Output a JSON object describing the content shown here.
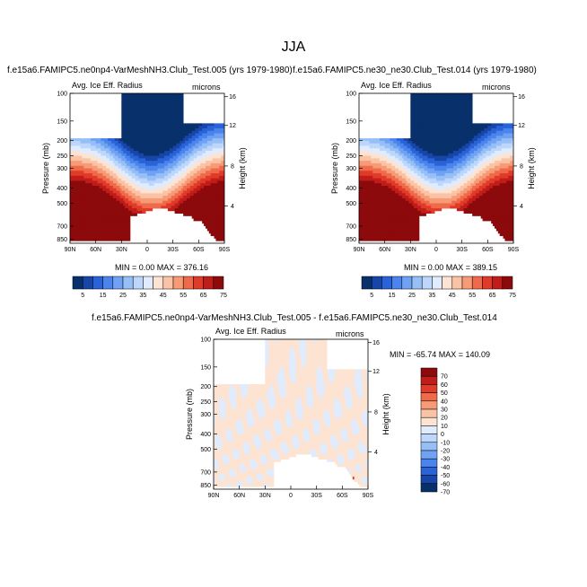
{
  "page": {
    "title": "JJA"
  },
  "palette": {
    "colors": [
      "#08306b",
      "#1746a8",
      "#2a63d8",
      "#4a84ec",
      "#6fa2f2",
      "#96bff7",
      "#bcd7fb",
      "#e0ecfd",
      "#fde3d2",
      "#fbc3a6",
      "#f79a76",
      "#ef6a4a",
      "#e03a28",
      "#c01c1a",
      "#8c0a0c"
    ]
  },
  "chart_data": [
    {
      "type": "heatmap",
      "title": "f.e15a6.FAMIPC5.ne0np4-VarMeshNH3.Club_Test.005 (yrs 1979-1980)",
      "subtitle_left": "Avg. Ice Eff. Radius",
      "subtitle_right": "microns",
      "ylabel": "Pressure (mb)",
      "ylabel_right": "Height (km)",
      "x_ticks": [
        "90N",
        "60N",
        "30N",
        "0",
        "30S",
        "60S",
        "90S"
      ],
      "y_ticks": [
        "100",
        "150",
        "200",
        "250",
        "300",
        "400",
        "500",
        "700",
        "850"
      ],
      "y_ticks_right": [
        "16",
        "12",
        "8",
        "4"
      ],
      "stats": "MIN =   0.00  MAX = 376.16",
      "colorbar_labels": [
        "5",
        "15",
        "25",
        "35",
        "45",
        "55",
        "65",
        "75"
      ],
      "levels": [
        5,
        10,
        15,
        20,
        25,
        30,
        35,
        40,
        45,
        50,
        55,
        60,
        65,
        70,
        75
      ],
      "min": 0.0,
      "max": 376.16
    },
    {
      "type": "heatmap",
      "title": "f.e15a6.FAMIPC5.ne30_ne30.Club_Test.014 (yrs 1979-1980)",
      "subtitle_left": "Avg. Ice Eff. Radius",
      "subtitle_right": "microns",
      "ylabel": "Pressure (mb)",
      "ylabel_right": "Height (km)",
      "x_ticks": [
        "90N",
        "60N",
        "30N",
        "0",
        "30S",
        "60S",
        "90S"
      ],
      "y_ticks": [
        "100",
        "150",
        "200",
        "250",
        "300",
        "400",
        "500",
        "700",
        "850"
      ],
      "y_ticks_right": [
        "16",
        "12",
        "8",
        "4"
      ],
      "stats": "MIN =   0.00  MAX = 389.15",
      "colorbar_labels": [
        "5",
        "15",
        "25",
        "35",
        "45",
        "55",
        "65",
        "75"
      ],
      "levels": [
        5,
        10,
        15,
        20,
        25,
        30,
        35,
        40,
        45,
        50,
        55,
        60,
        65,
        70,
        75
      ],
      "min": 0.0,
      "max": 389.15
    },
    {
      "type": "heatmap",
      "title": "f.e15a6.FAMIPC5.ne0np4-VarMeshNH3.Club_Test.005 - f.e15a6.FAMIPC5.ne30_ne30.Club_Test.014",
      "subtitle_left": "Avg. Ice Eff. Radius",
      "subtitle_right": "microns",
      "ylabel": "Pressure (mb)",
      "ylabel_right": "Height (km)",
      "x_ticks": [
        "90N",
        "60N",
        "30N",
        "0",
        "30S",
        "60S",
        "90S"
      ],
      "y_ticks": [
        "100",
        "150",
        "200",
        "250",
        "300",
        "400",
        "500",
        "700",
        "850"
      ],
      "y_ticks_right": [
        "16",
        "12",
        "8",
        "4"
      ],
      "stats": "MIN = -65.74  MAX = 140.09",
      "colorbar_labels": [
        "70",
        "60",
        "50",
        "40",
        "30",
        "20",
        "10",
        "0",
        "-10",
        "-20",
        "-30",
        "-40",
        "-50",
        "-60",
        "-70"
      ],
      "levels": [
        -70,
        -60,
        -50,
        -40,
        -30,
        -20,
        -10,
        0,
        10,
        20,
        30,
        40,
        50,
        60,
        70
      ],
      "min": -65.74,
      "max": 140.09
    }
  ]
}
